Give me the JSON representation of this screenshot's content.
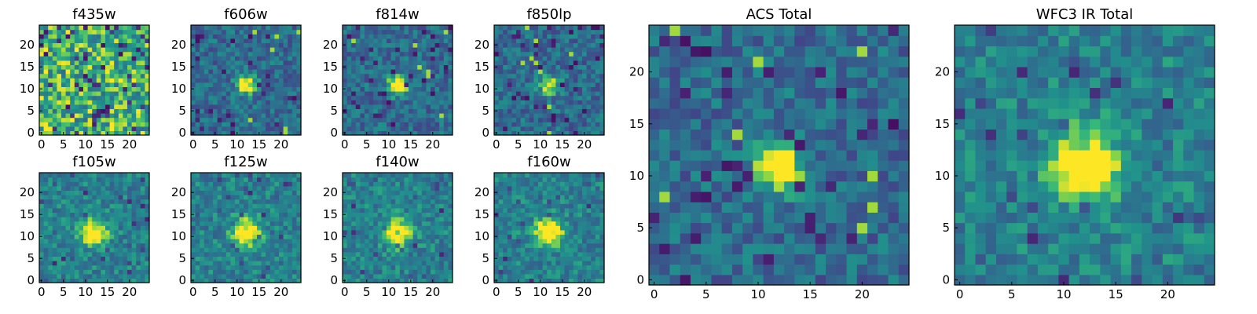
{
  "figure": {
    "description_visible": false
  },
  "chart_data": [
    {
      "type": "heatmap",
      "title": "f435w",
      "kind": "noise",
      "brightness": 0.0,
      "peak": [
        12,
        11
      ],
      "x_ticks": [
        "0",
        "5",
        "10",
        "15",
        "20"
      ],
      "y_ticks": [
        "0",
        "5",
        "10",
        "15",
        "20"
      ],
      "xlim": [
        -0.5,
        24.5
      ],
      "ylim": [
        -0.5,
        24.5
      ],
      "colormap": "viridis"
    },
    {
      "type": "heatmap",
      "title": "f606w",
      "kind": "source",
      "brightness": 0.85,
      "peak": [
        12,
        11
      ],
      "x_ticks": [
        "0",
        "5",
        "10",
        "15",
        "20"
      ],
      "y_ticks": [
        "0",
        "5",
        "10",
        "15",
        "20"
      ],
      "xlim": [
        -0.5,
        24.5
      ],
      "ylim": [
        -0.5,
        24.5
      ],
      "colormap": "viridis"
    },
    {
      "type": "heatmap",
      "title": "f814w",
      "kind": "source",
      "brightness": 0.9,
      "peak": [
        12,
        11
      ],
      "x_ticks": [
        "0",
        "5",
        "10",
        "15",
        "20"
      ],
      "y_ticks": [
        "0",
        "5",
        "10",
        "15",
        "20"
      ],
      "xlim": [
        -0.5,
        24.5
      ],
      "ylim": [
        -0.5,
        24.5
      ],
      "colormap": "viridis"
    },
    {
      "type": "heatmap",
      "title": "f850lp",
      "kind": "source",
      "brightness": 0.7,
      "peak": [
        12,
        11
      ],
      "x_ticks": [
        "0",
        "5",
        "10",
        "15",
        "20"
      ],
      "y_ticks": [
        "0",
        "5",
        "10",
        "15",
        "20"
      ],
      "xlim": [
        -0.5,
        24.5
      ],
      "ylim": [
        -0.5,
        24.5
      ],
      "colormap": "viridis"
    },
    {
      "type": "heatmap",
      "title": "f105w",
      "kind": "ir",
      "brightness": 0.9,
      "peak": [
        12,
        11
      ],
      "x_ticks": [
        "0",
        "5",
        "10",
        "15",
        "20"
      ],
      "y_ticks": [
        "0",
        "5",
        "10",
        "15",
        "20"
      ],
      "xlim": [
        -0.5,
        24.5
      ],
      "ylim": [
        -0.5,
        24.5
      ],
      "colormap": "viridis"
    },
    {
      "type": "heatmap",
      "title": "f125w",
      "kind": "ir",
      "brightness": 0.95,
      "peak": [
        12,
        11
      ],
      "x_ticks": [
        "0",
        "5",
        "10",
        "15",
        "20"
      ],
      "y_ticks": [
        "0",
        "5",
        "10",
        "15",
        "20"
      ],
      "xlim": [
        -0.5,
        24.5
      ],
      "ylim": [
        -0.5,
        24.5
      ],
      "colormap": "viridis"
    },
    {
      "type": "heatmap",
      "title": "f140w",
      "kind": "ir",
      "brightness": 0.9,
      "peak": [
        12,
        11
      ],
      "x_ticks": [
        "0",
        "5",
        "10",
        "15",
        "20"
      ],
      "y_ticks": [
        "0",
        "5",
        "10",
        "15",
        "20"
      ],
      "xlim": [
        -0.5,
        24.5
      ],
      "ylim": [
        -0.5,
        24.5
      ],
      "colormap": "viridis"
    },
    {
      "type": "heatmap",
      "title": "f160w",
      "kind": "ir",
      "brightness": 1.0,
      "peak": [
        12,
        11
      ],
      "x_ticks": [
        "0",
        "5",
        "10",
        "15",
        "20"
      ],
      "y_ticks": [
        "0",
        "5",
        "10",
        "15",
        "20"
      ],
      "xlim": [
        -0.5,
        24.5
      ],
      "ylim": [
        -0.5,
        24.5
      ],
      "colormap": "viridis"
    },
    {
      "type": "heatmap",
      "title": "ACS Total",
      "kind": "source",
      "brightness": 1.0,
      "peak": [
        12,
        11
      ],
      "x_ticks": [
        "0",
        "5",
        "10",
        "15",
        "20"
      ],
      "y_ticks": [
        "0",
        "5",
        "10",
        "15",
        "20"
      ],
      "xlim": [
        -0.5,
        24.5
      ],
      "ylim": [
        -0.5,
        24.5
      ],
      "colormap": "viridis"
    },
    {
      "type": "heatmap",
      "title": "WFC3 IR Total",
      "kind": "ir",
      "brightness": 1.05,
      "peak": [
        12,
        11
      ],
      "x_ticks": [
        "0",
        "5",
        "10",
        "15",
        "20"
      ],
      "y_ticks": [
        "0",
        "5",
        "10",
        "15",
        "20"
      ],
      "xlim": [
        -0.5,
        24.5
      ],
      "ylim": [
        -0.5,
        24.5
      ],
      "colormap": "viridis"
    }
  ]
}
